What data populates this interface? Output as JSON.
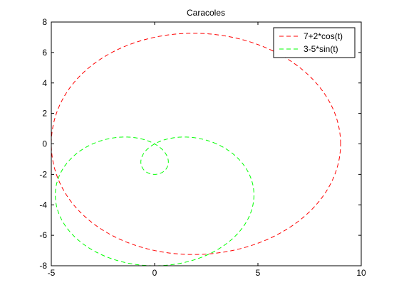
{
  "chart_data": {
    "type": "line",
    "title": "Caracoles",
    "xlabel": "",
    "ylabel": "",
    "xlim": [
      -5,
      10
    ],
    "ylim": [
      -8,
      8
    ],
    "x_ticks": [
      -5,
      0,
      5,
      10
    ],
    "y_ticks": [
      -8,
      -6,
      -4,
      -2,
      0,
      2,
      4,
      6,
      8
    ],
    "x_tick_labels": [
      "-5",
      "0",
      "5",
      "10"
    ],
    "y_tick_labels": [
      "-8",
      "-6",
      "-4",
      "-2",
      "0",
      "2",
      "4",
      "6",
      "8"
    ],
    "grid": false,
    "legend_position": "top-right",
    "series": [
      {
        "name": "7+2*cos(t)",
        "color": "#ff0000",
        "line_style": "dashed",
        "curve": "polar limacon r = 7 + 2*cos(t), t from 0 to 2*pi",
        "key_points": [
          [
            9,
            0
          ],
          [
            2,
            7.28
          ],
          [
            -5,
            0
          ],
          [
            2,
            -7.28
          ]
        ]
      },
      {
        "name": "3-5*sin(t)",
        "color": "#00ff00",
        "line_style": "dashed",
        "curve": "polar limacon r = 3 - 5*sin(t), t from 0 to 2*pi",
        "key_points": [
          [
            3,
            0
          ],
          [
            0,
            -8
          ],
          [
            -3,
            0
          ],
          [
            0,
            -2
          ],
          [
            1.5,
            0.45
          ],
          [
            -1.5,
            0.45
          ]
        ]
      }
    ]
  }
}
